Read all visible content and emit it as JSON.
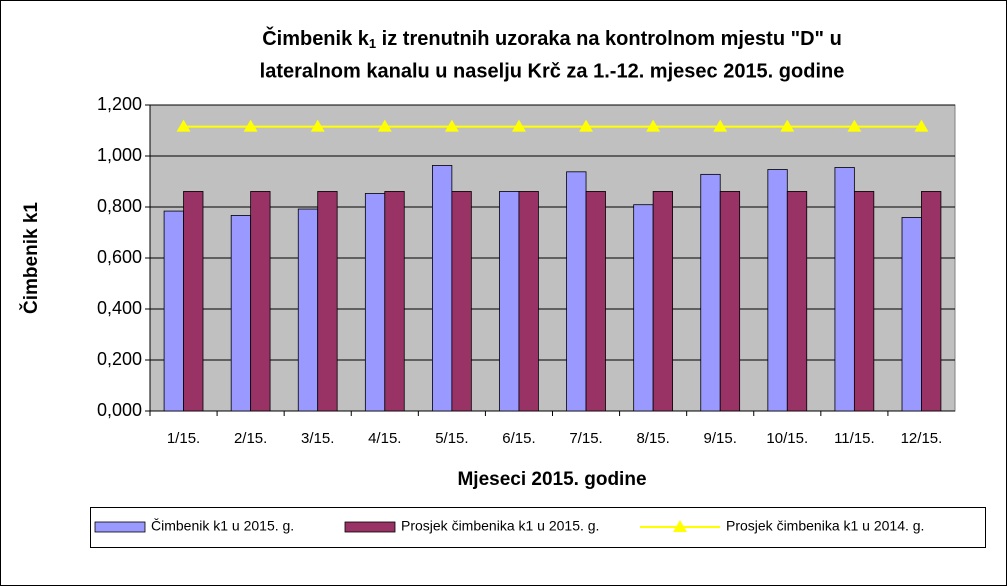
{
  "chart_data": {
    "type": "bar",
    "title": [
      "Čimbenik k",
      "1",
      " iz trenutnih uzoraka na kontrolnom mjestu \"D\" u",
      "lateralnom kanalu u naselju Krč za 1.-12. mjesec 2015. godine"
    ],
    "xlabel": "Mjeseci 2015. godine",
    "ylabel": "Čimbenik k1",
    "categories": [
      "1/15.",
      "2/15.",
      "3/15.",
      "4/15.",
      "5/15.",
      "6/15.",
      "7/15.",
      "8/15.",
      "9/15.",
      "10/15.",
      "11/15.",
      "12/15."
    ],
    "series": [
      {
        "name": "Čimbenik k1 u 2015. g.",
        "color": "#9999ff",
        "type": "bar",
        "values": [
          0.784,
          0.767,
          0.792,
          0.853,
          0.963,
          0.861,
          0.938,
          0.809,
          0.928,
          0.947,
          0.955,
          0.759
        ]
      },
      {
        "name": "Prosjek čimbenika k1 u 2015. g.",
        "color": "#993366",
        "type": "bar",
        "values": [
          0.861,
          0.861,
          0.861,
          0.861,
          0.861,
          0.861,
          0.861,
          0.861,
          0.861,
          0.861,
          0.861,
          0.861
        ]
      },
      {
        "name": "Prosjek čimbenika k1 u 2014. g.",
        "color": "#ffff00",
        "type": "line",
        "values": [
          1.115,
          1.115,
          1.115,
          1.115,
          1.115,
          1.115,
          1.115,
          1.115,
          1.115,
          1.115,
          1.115,
          1.115
        ]
      }
    ],
    "ylim": [
      0,
      1.2
    ],
    "yticks": [
      {
        "value": 0,
        "label": "0,000"
      },
      {
        "value": 0.2,
        "label": "0,200"
      },
      {
        "value": 0.4,
        "label": "0,400"
      },
      {
        "value": 0.6,
        "label": "0,600"
      },
      {
        "value": 0.8,
        "label": "0,800"
      },
      {
        "value": 1,
        "label": "1,000"
      },
      {
        "value": 1.2,
        "label": "1,200"
      }
    ],
    "grid": true,
    "legend": "bottom",
    "plot_background": "#c0c0c0"
  }
}
